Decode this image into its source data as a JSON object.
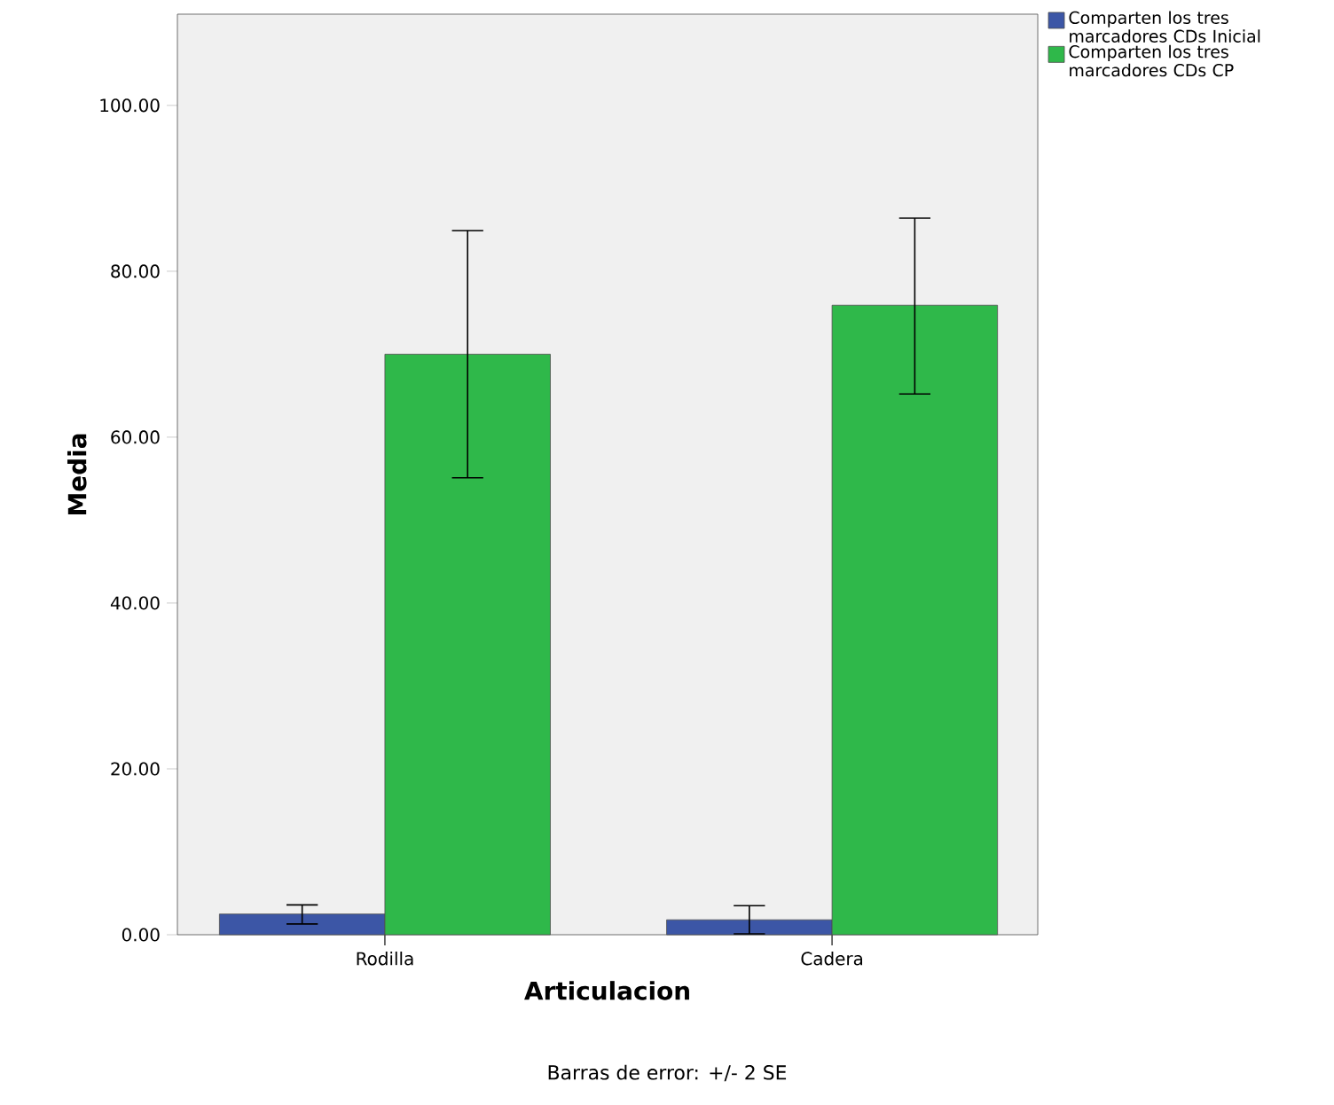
{
  "chart_data": {
    "type": "bar",
    "xlabel": "Articulacion",
    "ylabel": "Media",
    "categories": [
      "Rodilla",
      "Cadera"
    ],
    "series": [
      {
        "name": "Comparten los tres marcadores CDs Inicial",
        "color": "#3c56a6",
        "values": [
          2.5,
          1.8
        ],
        "errors": [
          [
            1.3,
            3.6
          ],
          [
            0.1,
            3.5
          ]
        ]
      },
      {
        "name": "Comparten los tres marcadores CDs CP",
        "color": "#2fb84a",
        "values": [
          70.0,
          75.9
        ],
        "errors": [
          [
            55.1,
            84.9
          ],
          [
            65.2,
            86.4
          ]
        ]
      }
    ],
    "ylim": [
      0,
      111
    ],
    "yticks": [
      {
        "value": 0,
        "label": "0.00"
      },
      {
        "value": 20,
        "label": "20.00"
      },
      {
        "value": 40,
        "label": "40.00"
      },
      {
        "value": 60,
        "label": "60.00"
      },
      {
        "value": 80,
        "label": "80.00"
      },
      {
        "value": 100,
        "label": "100.00"
      }
    ],
    "grid": false,
    "legend": "top right",
    "annotations": [
      "Barras de error: +/- 2 SE"
    ]
  }
}
